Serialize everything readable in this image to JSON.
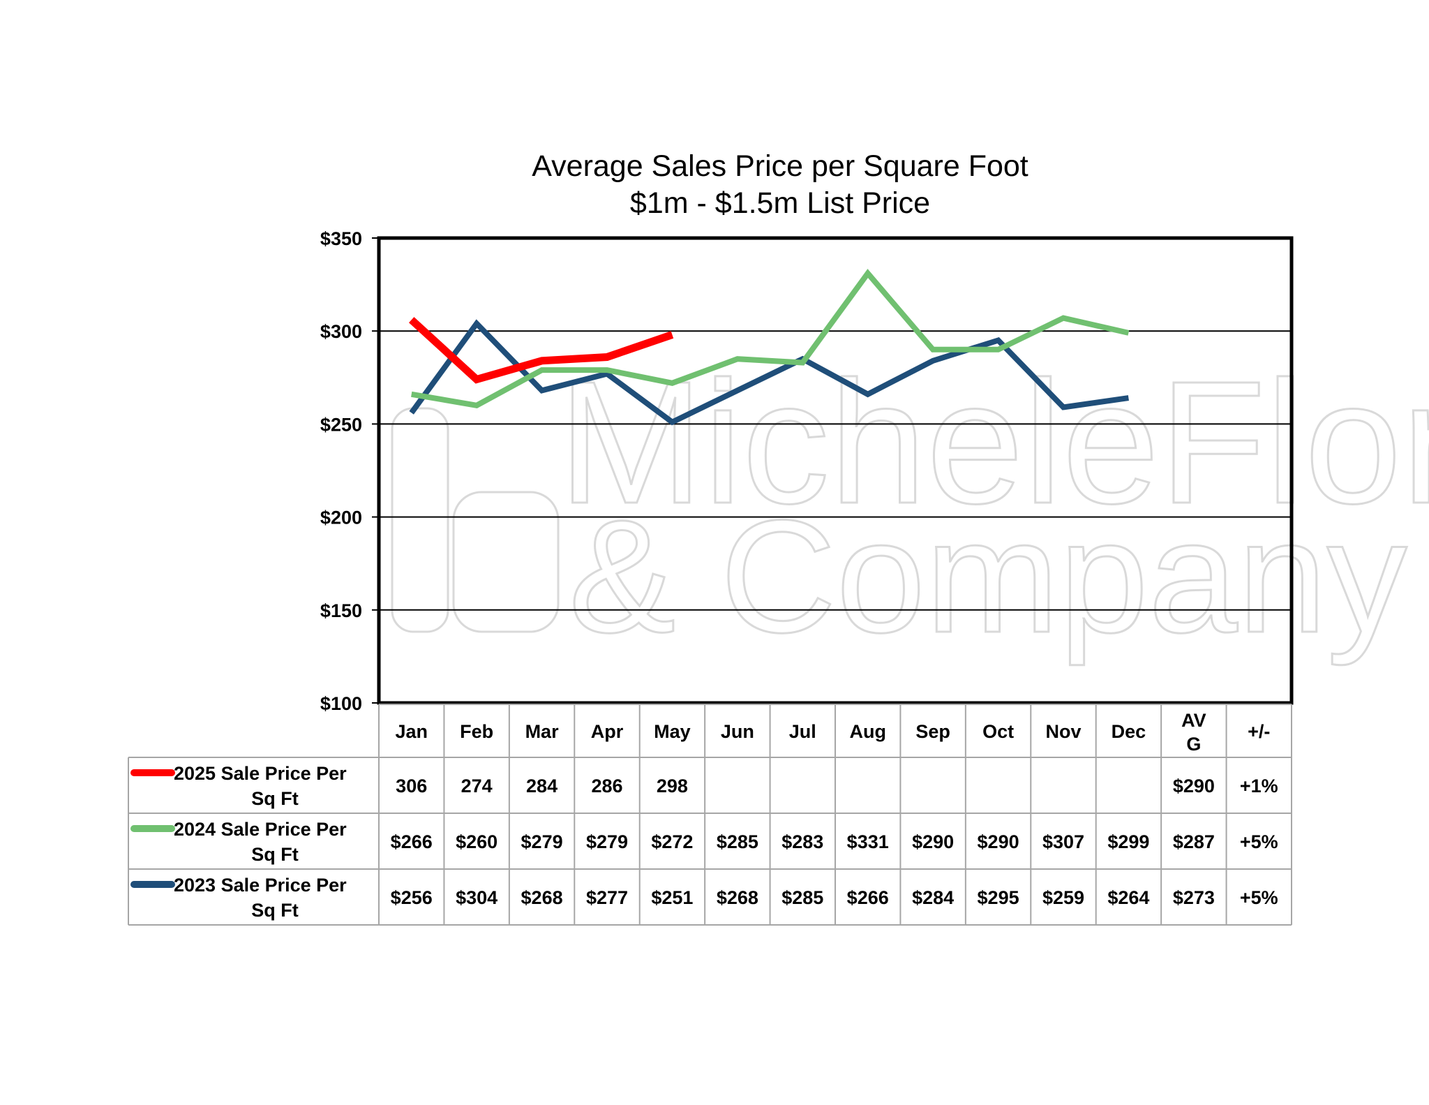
{
  "chart_data": {
    "type": "line",
    "title": "Average Sales Price per Square Foot",
    "subtitle": "$1m - $1.5m List Price",
    "watermark": [
      "MicheleFlory",
      "& Company"
    ],
    "categories": [
      "Jan",
      "Feb",
      "Mar",
      "Apr",
      "May",
      "Jun",
      "Jul",
      "Aug",
      "Sep",
      "Oct",
      "Nov",
      "Dec"
    ],
    "table_extra_headers": [
      "AV G",
      "+/-"
    ],
    "y_tick_labels": [
      "$350",
      "$300",
      "$250",
      "$200",
      "$150",
      "$100"
    ],
    "ylim": [
      100,
      350
    ],
    "grid": true,
    "legend": "table-left",
    "series": [
      {
        "name": "2025 Sale Price Per Sq Ft",
        "color": "#ff0000",
        "values": [
          306,
          274,
          284,
          286,
          298,
          null,
          null,
          null,
          null,
          null,
          null,
          null
        ],
        "cells": [
          "306",
          "274",
          "284",
          "286",
          "298",
          "",
          "",
          "",
          "",
          "",
          "",
          ""
        ],
        "avg": "$290",
        "change": "+1%"
      },
      {
        "name": "2024 Sale Price Per Sq Ft",
        "color": "#70c070",
        "values": [
          266,
          260,
          279,
          279,
          272,
          285,
          283,
          331,
          290,
          290,
          307,
          299
        ],
        "cells": [
          "$266",
          "$260",
          "$279",
          "$279",
          "$272",
          "$285",
          "$283",
          "$331",
          "$290",
          "$290",
          "$307",
          "$299"
        ],
        "avg": "$287",
        "change": "+5%"
      },
      {
        "name": "2023 Sale Price Per Sq Ft",
        "color": "#1f4e79",
        "values": [
          256,
          304,
          268,
          277,
          251,
          268,
          285,
          266,
          284,
          295,
          259,
          264
        ],
        "cells": [
          "$256",
          "$304",
          "$268",
          "$277",
          "$251",
          "$268",
          "$285",
          "$266",
          "$284",
          "$295",
          "$259",
          "$264"
        ],
        "avg": "$273",
        "change": "+5%"
      }
    ]
  }
}
